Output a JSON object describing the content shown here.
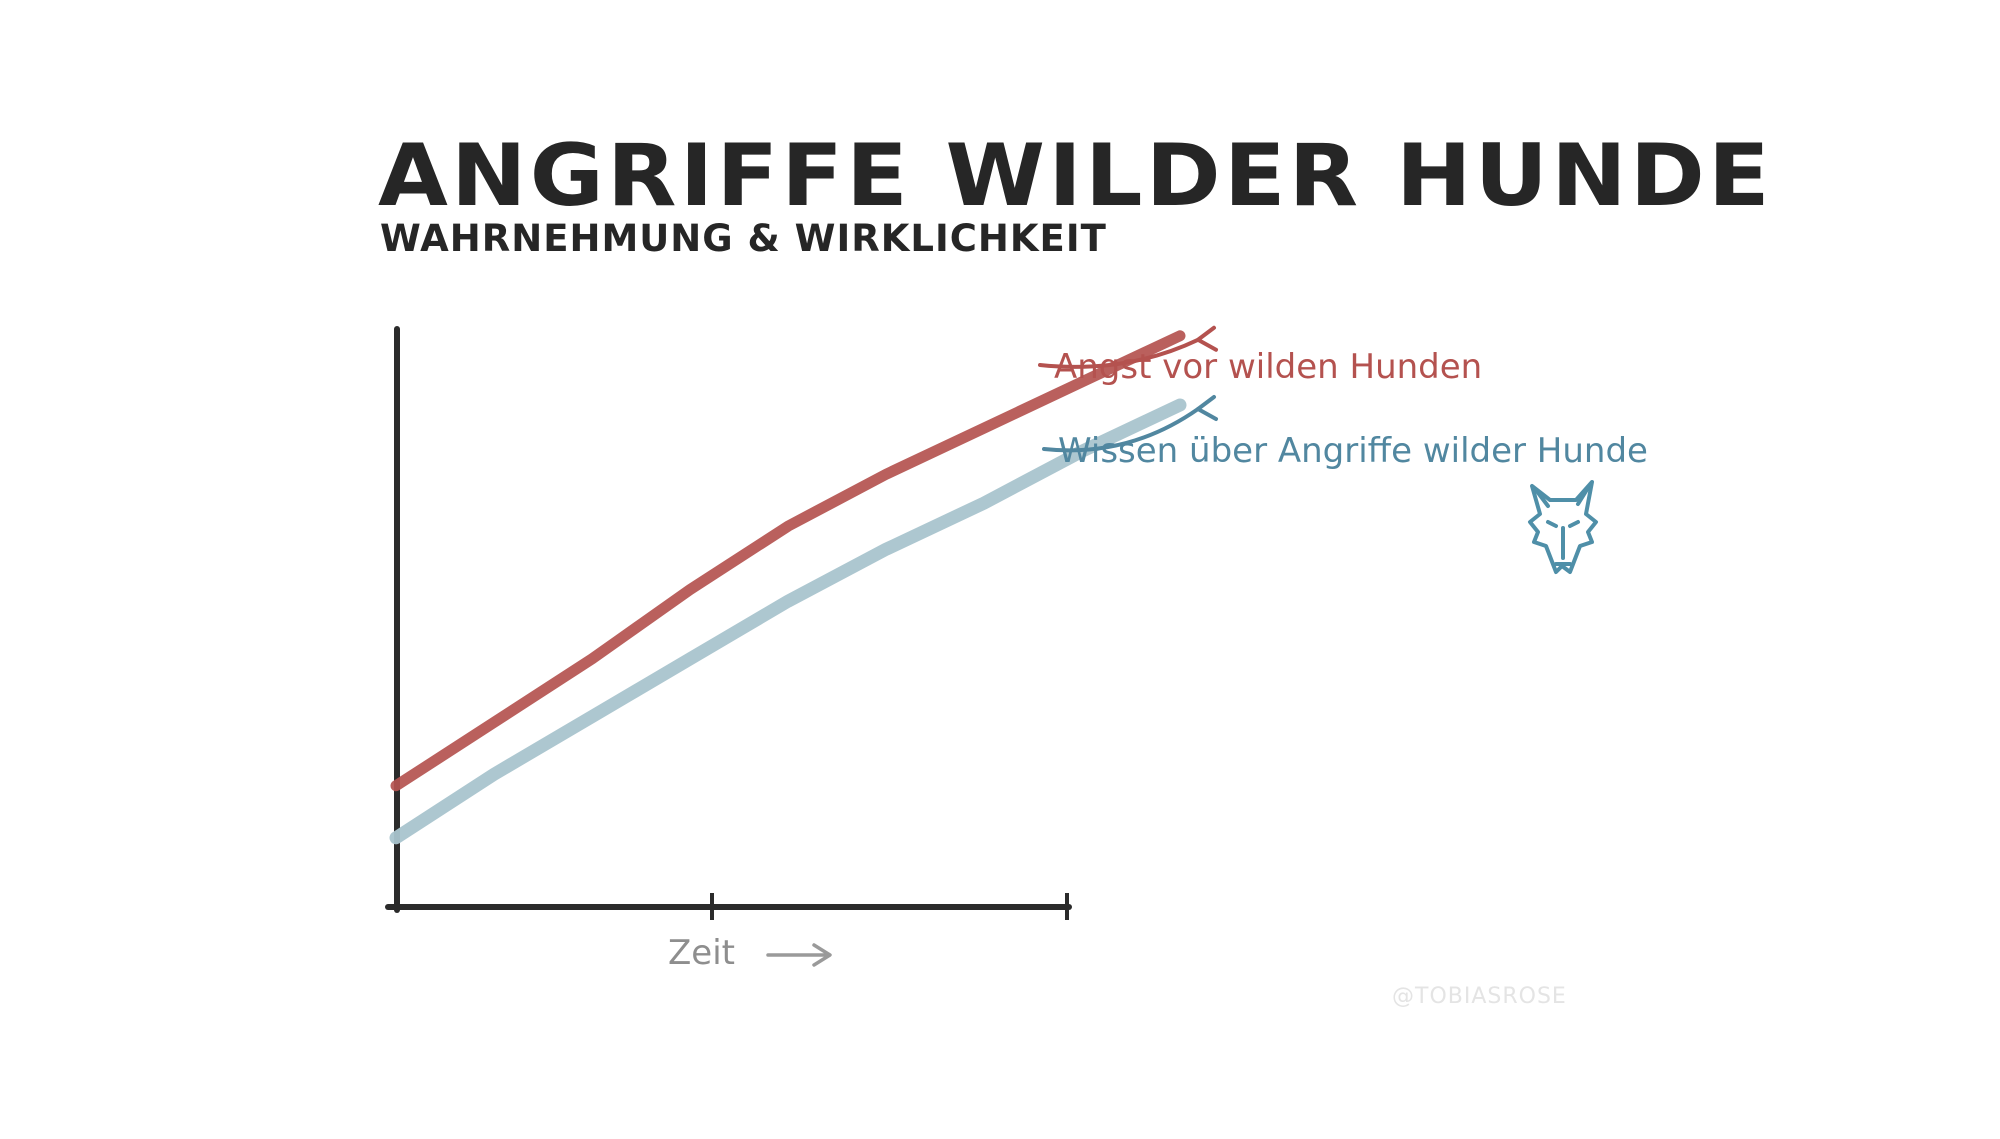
{
  "title": "ANGRIFFE WILDER HUNDE",
  "subtitle": "WAHRNEHMUNG & WIRKLICHKEIT",
  "credit": "@TOBIASROSE",
  "icon": "wild-dog-head",
  "colors": {
    "axis": "#2b2b2b",
    "fear": "#b4524f",
    "knowledge": "#a9c4ce",
    "fear_label": "#b4524f",
    "knowledge_label": "#5187a0",
    "icon": "#4f8fa8",
    "time_label": "#8e8e8e"
  },
  "chart_data": {
    "type": "line",
    "xlabel": "Zeit",
    "ylabel": "",
    "xlim": [
      0,
      1
    ],
    "ylim": [
      0,
      1
    ],
    "grid": false,
    "legend": "right",
    "series": [
      {
        "name": "Angst vor wilden Hunden",
        "x": [
          0,
          0.1,
          0.2,
          0.3,
          0.4,
          0.5,
          0.6,
          0.7,
          0.8
        ],
        "y": [
          0.21,
          0.32,
          0.43,
          0.55,
          0.66,
          0.75,
          0.83,
          0.91,
          0.99
        ]
      },
      {
        "name": "Wissen über Angriffe wilder Hunde",
        "x": [
          0,
          0.1,
          0.2,
          0.3,
          0.4,
          0.5,
          0.6,
          0.7,
          0.8
        ],
        "y": [
          0.12,
          0.23,
          0.33,
          0.43,
          0.53,
          0.62,
          0.7,
          0.79,
          0.87
        ]
      }
    ]
  }
}
